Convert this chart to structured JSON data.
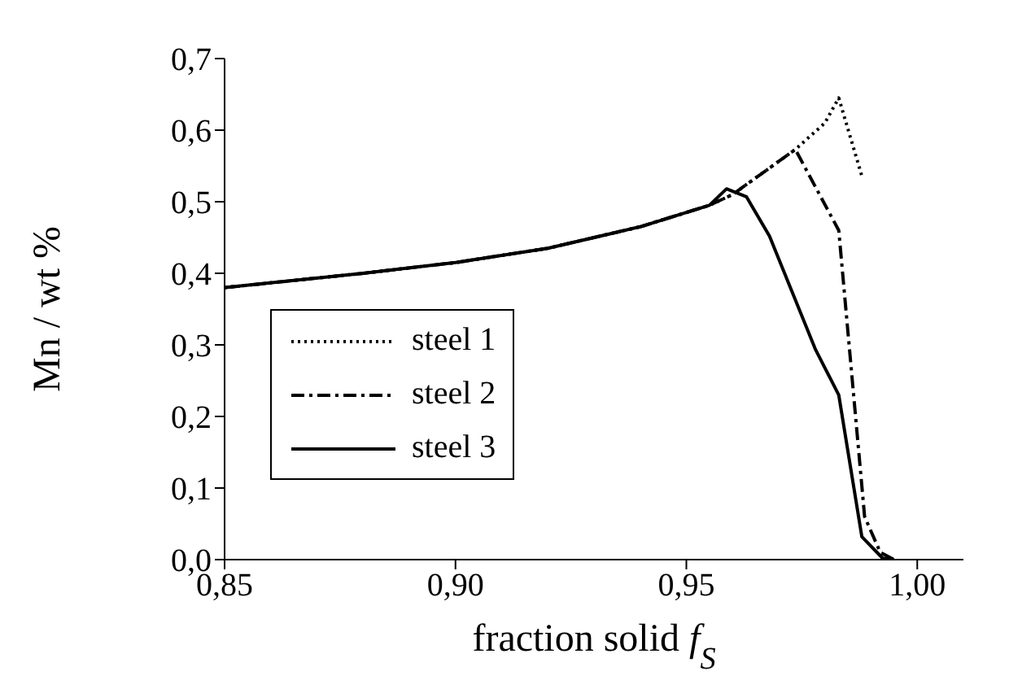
{
  "chart_data": {
    "type": "line",
    "xlabel": "fraction solid f$_{S}$",
    "ylabel": "Mn / wt %",
    "xlim": [
      0.85,
      1.01
    ],
    "ylim": [
      0,
      0.7
    ],
    "xticks": [
      {
        "value": 0.85,
        "label": "0,85"
      },
      {
        "value": 0.9,
        "label": "0,90"
      },
      {
        "value": 0.95,
        "label": "0,95"
      },
      {
        "value": 1.0,
        "label": "1,00"
      }
    ],
    "yticks": [
      {
        "value": 0,
        "label": "0,0"
      },
      {
        "value": 0.1,
        "label": "0,1"
      },
      {
        "value": 0.2,
        "label": "0,2"
      },
      {
        "value": 0.3,
        "label": "0,3"
      },
      {
        "value": 0.4,
        "label": "0,4"
      },
      {
        "value": 0.5,
        "label": "0,5"
      },
      {
        "value": 0.6,
        "label": "0,6"
      },
      {
        "value": 0.7,
        "label": "0,7"
      }
    ],
    "grid": false,
    "legend": "bottom left",
    "marker": "none",
    "series": [
      {
        "name": "steel 1",
        "color": "#000000",
        "line_style": "dotted",
        "x": [
          0.85,
          0.88,
          0.9,
          0.92,
          0.94,
          0.955,
          0.96,
          0.9736,
          0.98,
          0.983,
          0.988
        ],
        "values": [
          0.38,
          0.4,
          0.415,
          0.435,
          0.465,
          0.495,
          0.51,
          0.573,
          0.61,
          0.645,
          0.536
        ]
      },
      {
        "name": "steel 2",
        "color": "#000000",
        "line_style": "dashdot",
        "x": [
          0.85,
          0.88,
          0.9,
          0.92,
          0.94,
          0.955,
          0.96,
          0.9736,
          0.983,
          0.9886,
          0.992,
          0.995
        ],
        "values": [
          0.38,
          0.4,
          0.415,
          0.435,
          0.465,
          0.495,
          0.51,
          0.573,
          0.46,
          0.06,
          0.01,
          0
        ]
      },
      {
        "name": "steel 3",
        "color": "#000000",
        "line_style": "solid",
        "x": [
          0.85,
          0.88,
          0.9,
          0.92,
          0.94,
          0.955,
          0.9587,
          0.963,
          0.968,
          0.978,
          0.983,
          0.988,
          0.9925,
          0.995
        ],
        "values": [
          0.38,
          0.4,
          0.415,
          0.435,
          0.465,
          0.495,
          0.518,
          0.507,
          0.452,
          0.293,
          0.23,
          0.032,
          0.002,
          0
        ]
      }
    ]
  }
}
